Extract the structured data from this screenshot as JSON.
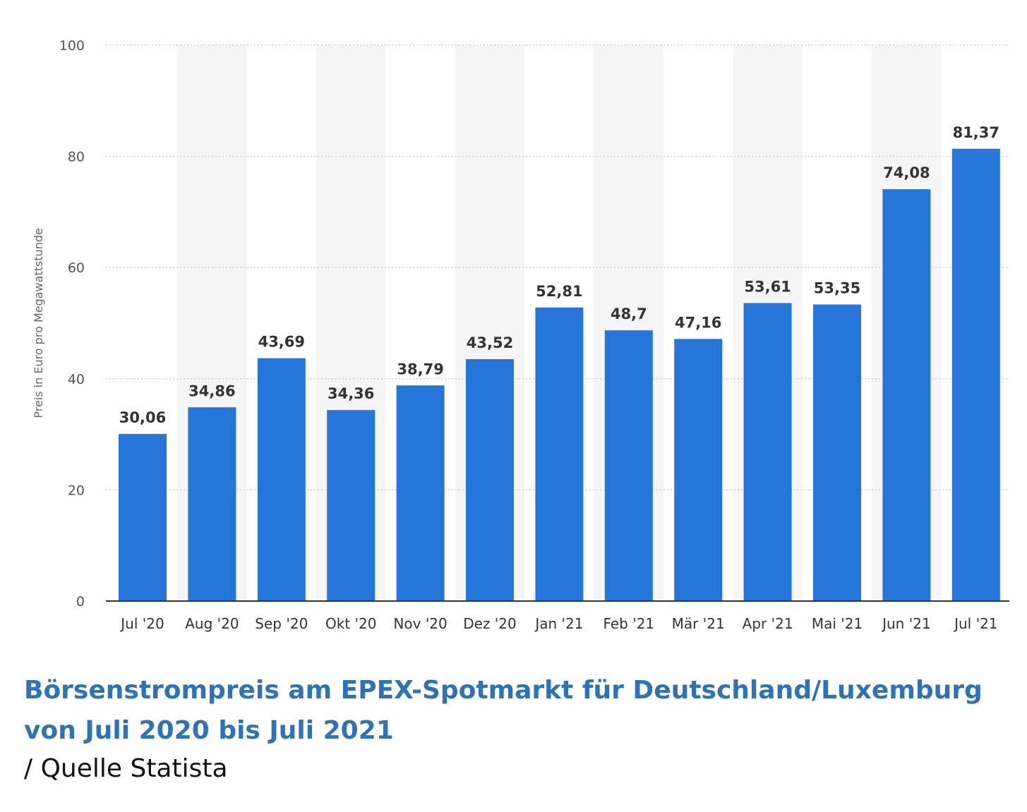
{
  "chart_data": {
    "type": "bar",
    "categories": [
      "Jul '20",
      "Aug '20",
      "Sep '20",
      "Okt '20",
      "Nov '20",
      "Dez '20",
      "Jan '21",
      "Feb '21",
      "Mär '21",
      "Apr '21",
      "Mai '21",
      "Jun '21",
      "Jul '21"
    ],
    "values": [
      30.06,
      34.86,
      43.69,
      34.36,
      38.79,
      43.52,
      52.81,
      48.7,
      47.16,
      53.61,
      53.35,
      74.08,
      81.37
    ],
    "value_labels": [
      "30,06",
      "34,86",
      "43,69",
      "34,36",
      "38,79",
      "43,52",
      "52,81",
      "48,7",
      "47,16",
      "53,61",
      "53,35",
      "74,08",
      "81,37"
    ],
    "ylabel": "Preis in Euro pro Megawattstunde",
    "xlabel": "",
    "ylim": [
      0,
      100
    ],
    "yticks": [
      0,
      20,
      40,
      60,
      80,
      100
    ],
    "grid": true,
    "bar_color": "#2775d9",
    "band_color": "#f6f6f6"
  },
  "caption": {
    "title": "Börsenstrompreis am EPEX-Spotmarkt für Deutschland/Luxemburg von Juli 2020 bis Juli 2021",
    "source": "/ Quelle Statista"
  }
}
